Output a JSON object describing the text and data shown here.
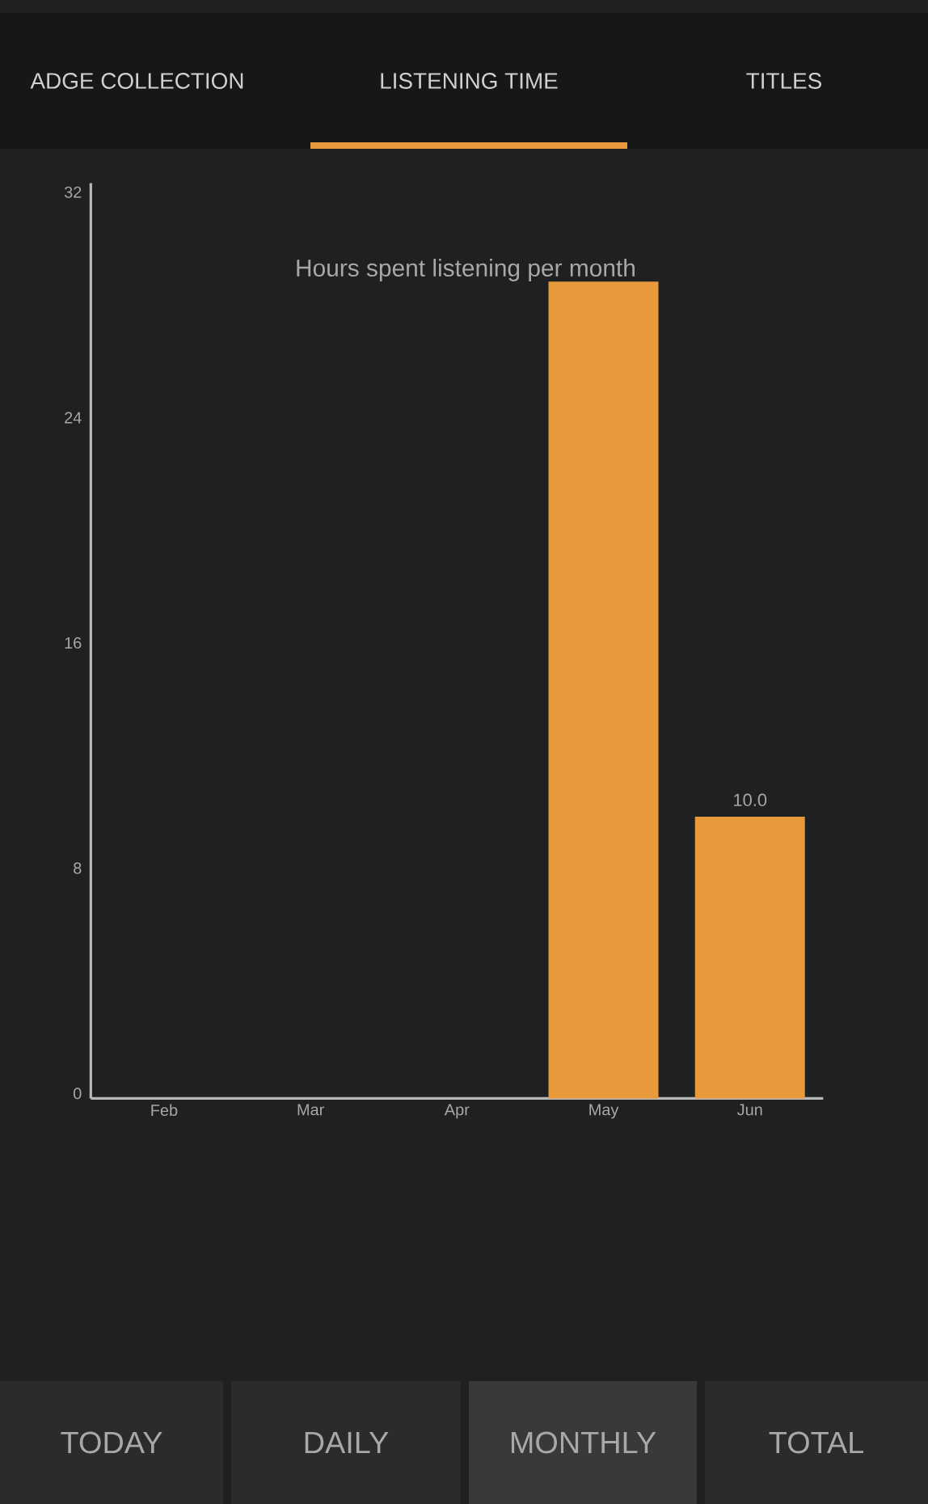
{
  "chart_data": {
    "type": "bar",
    "title": "Hours spent listening per month",
    "categories": [
      "Feb",
      "Mar",
      "Apr",
      "May",
      "Jun"
    ],
    "values": [
      0,
      0,
      0,
      29,
      10.0
    ],
    "value_labels": [
      null,
      null,
      null,
      null,
      "10.0"
    ],
    "color": "#e8993c",
    "ylim": [
      0,
      32.5
    ],
    "yticks": [
      0,
      8,
      16,
      24,
      32
    ],
    "annotations": [
      "ADGE COLLECTION",
      "LISTENING TIME",
      "TITLES",
      "TODAY",
      "DAILY",
      "MONTHLY",
      "TOTAL"
    ]
  }
}
